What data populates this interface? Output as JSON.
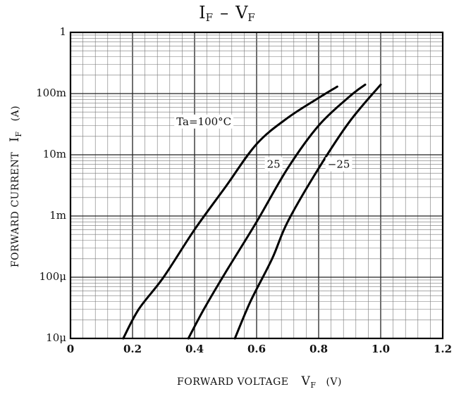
{
  "chart_data": {
    "type": "line",
    "title": {
      "main_prefix": "I",
      "main_prefix_sub": "F",
      "separator": "–",
      "main_suffix": "V",
      "main_suffix_sub": "F"
    },
    "xlabel": {
      "text": "FORWARD VOLTAGE",
      "symbol": "V",
      "symbol_sub": "F",
      "unit": "(V)"
    },
    "ylabel": {
      "text": "FORWARD CURRENT",
      "symbol": "I",
      "symbol_sub": "F",
      "unit": "(A)"
    },
    "x_range": [
      0,
      1.2
    ],
    "y_range": [
      1e-05,
      1
    ],
    "y_scale": "log",
    "grid": true,
    "x_ticks": [
      {
        "value": 0,
        "label": "0"
      },
      {
        "value": 0.2,
        "label": "0.2"
      },
      {
        "value": 0.4,
        "label": "0.4"
      },
      {
        "value": 0.6,
        "label": "0.6"
      },
      {
        "value": 0.8,
        "label": "0.8"
      },
      {
        "value": 1.0,
        "label": "1.0"
      },
      {
        "value": 1.2,
        "label": "1.2"
      }
    ],
    "y_ticks": [
      {
        "value": 1,
        "label": "1"
      },
      {
        "value": 0.1,
        "label": "100m"
      },
      {
        "value": 0.01,
        "label": "10m"
      },
      {
        "value": 0.001,
        "label": "1m"
      },
      {
        "value": 0.0001,
        "label": "100μ"
      },
      {
        "value": 1e-05,
        "label": "10μ"
      }
    ],
    "series": [
      {
        "name": "Ta=100°C",
        "label_x": 0.43,
        "label_y": 0.034,
        "points": [
          [
            0.17,
            1e-05
          ],
          [
            0.22,
            3e-05
          ],
          [
            0.3,
            0.0001
          ],
          [
            0.4,
            0.0006
          ],
          [
            0.5,
            0.003
          ],
          [
            0.6,
            0.015
          ],
          [
            0.7,
            0.04
          ],
          [
            0.8,
            0.085
          ],
          [
            0.86,
            0.13
          ]
        ]
      },
      {
        "name": "25",
        "label_x": 0.655,
        "label_y": 0.0068,
        "points": [
          [
            0.38,
            1e-05
          ],
          [
            0.43,
            3e-05
          ],
          [
            0.5,
            0.00012
          ],
          [
            0.6,
            0.0008
          ],
          [
            0.7,
            0.006
          ],
          [
            0.8,
            0.03
          ],
          [
            0.9,
            0.09
          ],
          [
            0.95,
            0.14
          ]
        ]
      },
      {
        "name": "−25",
        "label_x": 0.865,
        "label_y": 0.0068,
        "points": [
          [
            0.53,
            1e-05
          ],
          [
            0.58,
            4e-05
          ],
          [
            0.65,
            0.0002
          ],
          [
            0.7,
            0.0008
          ],
          [
            0.8,
            0.006
          ],
          [
            0.9,
            0.035
          ],
          [
            1.0,
            0.14
          ]
        ]
      }
    ]
  }
}
